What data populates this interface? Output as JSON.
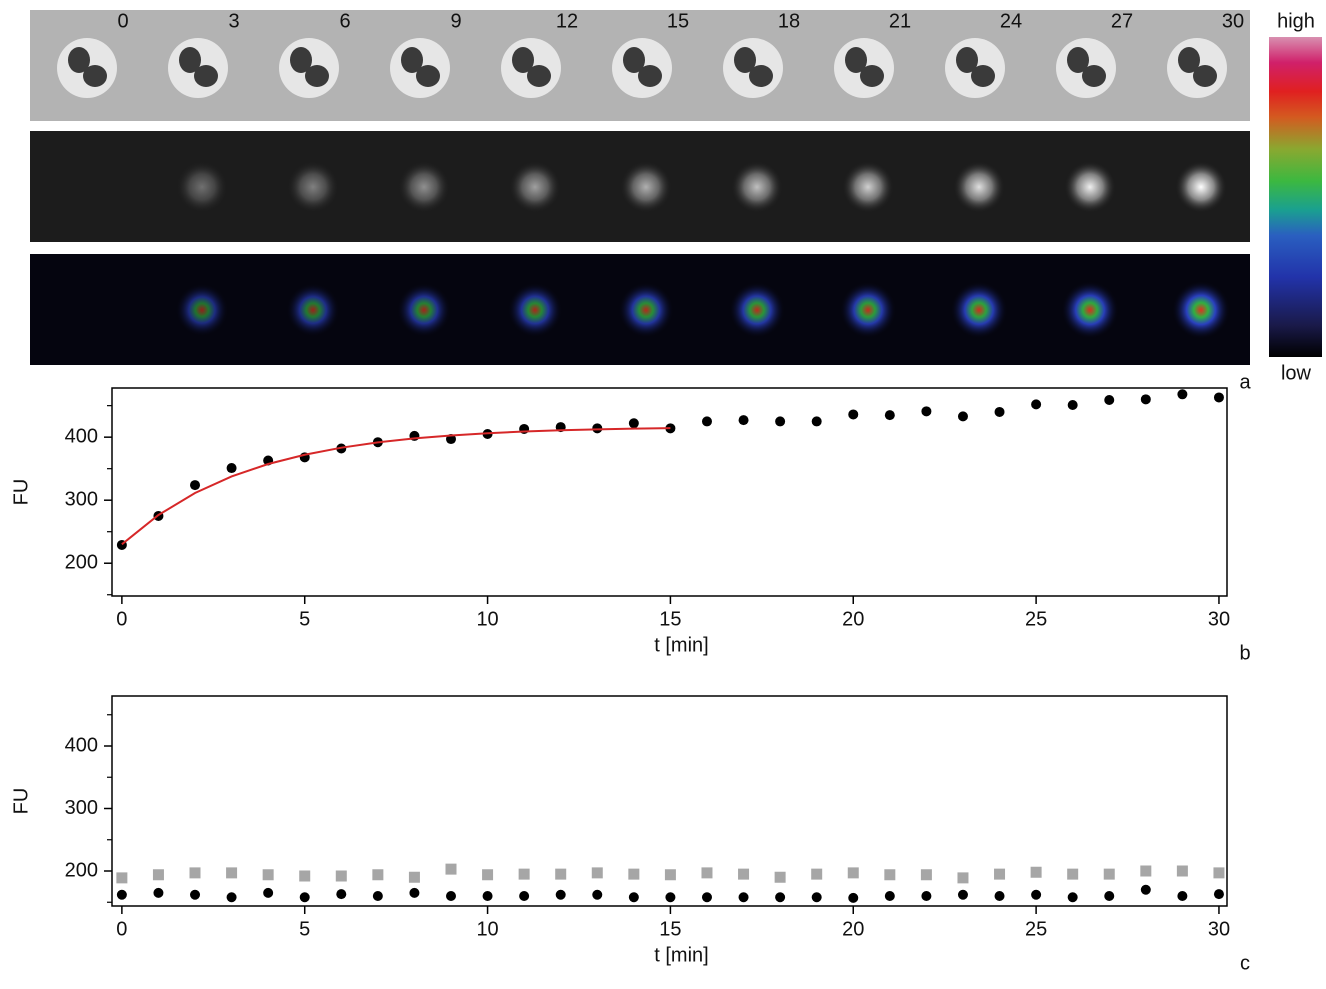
{
  "images": {
    "time_labels": [
      0,
      3,
      6,
      9,
      12,
      15,
      18,
      21,
      24,
      27,
      30
    ],
    "colorbar": {
      "high": "high",
      "low": "low"
    },
    "panel_label": "a"
  },
  "chart_data": [
    {
      "type": "scatter",
      "panel_label": "b",
      "xlabel": "t [min]",
      "ylabel": "FU",
      "xlim": [
        -0.27,
        30.22
      ],
      "ylim": [
        148,
        478
      ],
      "xticks": [
        0,
        5,
        10,
        15,
        20,
        25,
        30
      ],
      "yticks": [
        200,
        300,
        400
      ],
      "yminorticks": [
        150,
        250,
        350,
        450
      ],
      "x": [
        0,
        1,
        2,
        3,
        4,
        5,
        6,
        7,
        8,
        9,
        10,
        11,
        12,
        13,
        14,
        15,
        16,
        17,
        18,
        19,
        20,
        21,
        22,
        23,
        24,
        25,
        26,
        27,
        28,
        29,
        30
      ],
      "series": [
        {
          "color": "#000000",
          "marker": "circle",
          "values": [
            229,
            275,
            324,
            351,
            363,
            368,
            382,
            392,
            402,
            397,
            405,
            413,
            416,
            414,
            422,
            414,
            425,
            427,
            425,
            425,
            436,
            435,
            441,
            433,
            440,
            452,
            451,
            459,
            460,
            468,
            463
          ]
        },
        {
          "color": "#d62728",
          "marker": "line",
          "x": [
            0,
            1,
            2,
            3,
            4,
            5,
            6,
            7,
            8,
            9,
            10,
            11,
            12,
            13,
            14,
            15
          ],
          "values": [
            230,
            276.5,
            311.4,
            337.7,
            357.4,
            372.1,
            383.3,
            391.7,
            398,
            402.7,
            406.3,
            408.9,
            410.9,
            412.4,
            413.6,
            414.4
          ]
        }
      ]
    },
    {
      "type": "scatter",
      "panel_label": "c",
      "xlabel": "t [min]",
      "ylabel": "FU",
      "xlim": [
        -0.27,
        30.22
      ],
      "ylim": [
        144,
        480
      ],
      "xticks": [
        0,
        5,
        10,
        15,
        20,
        25,
        30
      ],
      "yticks": [
        200,
        300,
        400
      ],
      "yminorticks": [
        150,
        250,
        350,
        450
      ],
      "x": [
        0,
        1,
        2,
        3,
        4,
        5,
        6,
        7,
        8,
        9,
        10,
        11,
        12,
        13,
        14,
        15,
        16,
        17,
        18,
        19,
        20,
        21,
        22,
        23,
        24,
        25,
        26,
        27,
        28,
        29,
        30
      ],
      "series": [
        {
          "color": "#a6a6a6",
          "marker": "square",
          "values": [
            189,
            194,
            197,
            197,
            194,
            192,
            192,
            194,
            190,
            203,
            194,
            195,
            195,
            197,
            195,
            194,
            197,
            195,
            190,
            195,
            197,
            194,
            194,
            189,
            195,
            198,
            195,
            195,
            200,
            200,
            197
          ]
        },
        {
          "color": "#000000",
          "marker": "circle",
          "values": [
            162,
            165,
            162,
            158,
            165,
            158,
            163,
            160,
            165,
            160,
            160,
            160,
            162,
            162,
            158,
            158,
            158,
            158,
            158,
            158,
            157,
            160,
            160,
            162,
            160,
            162,
            158,
            160,
            170,
            160,
            163
          ]
        }
      ]
    }
  ]
}
